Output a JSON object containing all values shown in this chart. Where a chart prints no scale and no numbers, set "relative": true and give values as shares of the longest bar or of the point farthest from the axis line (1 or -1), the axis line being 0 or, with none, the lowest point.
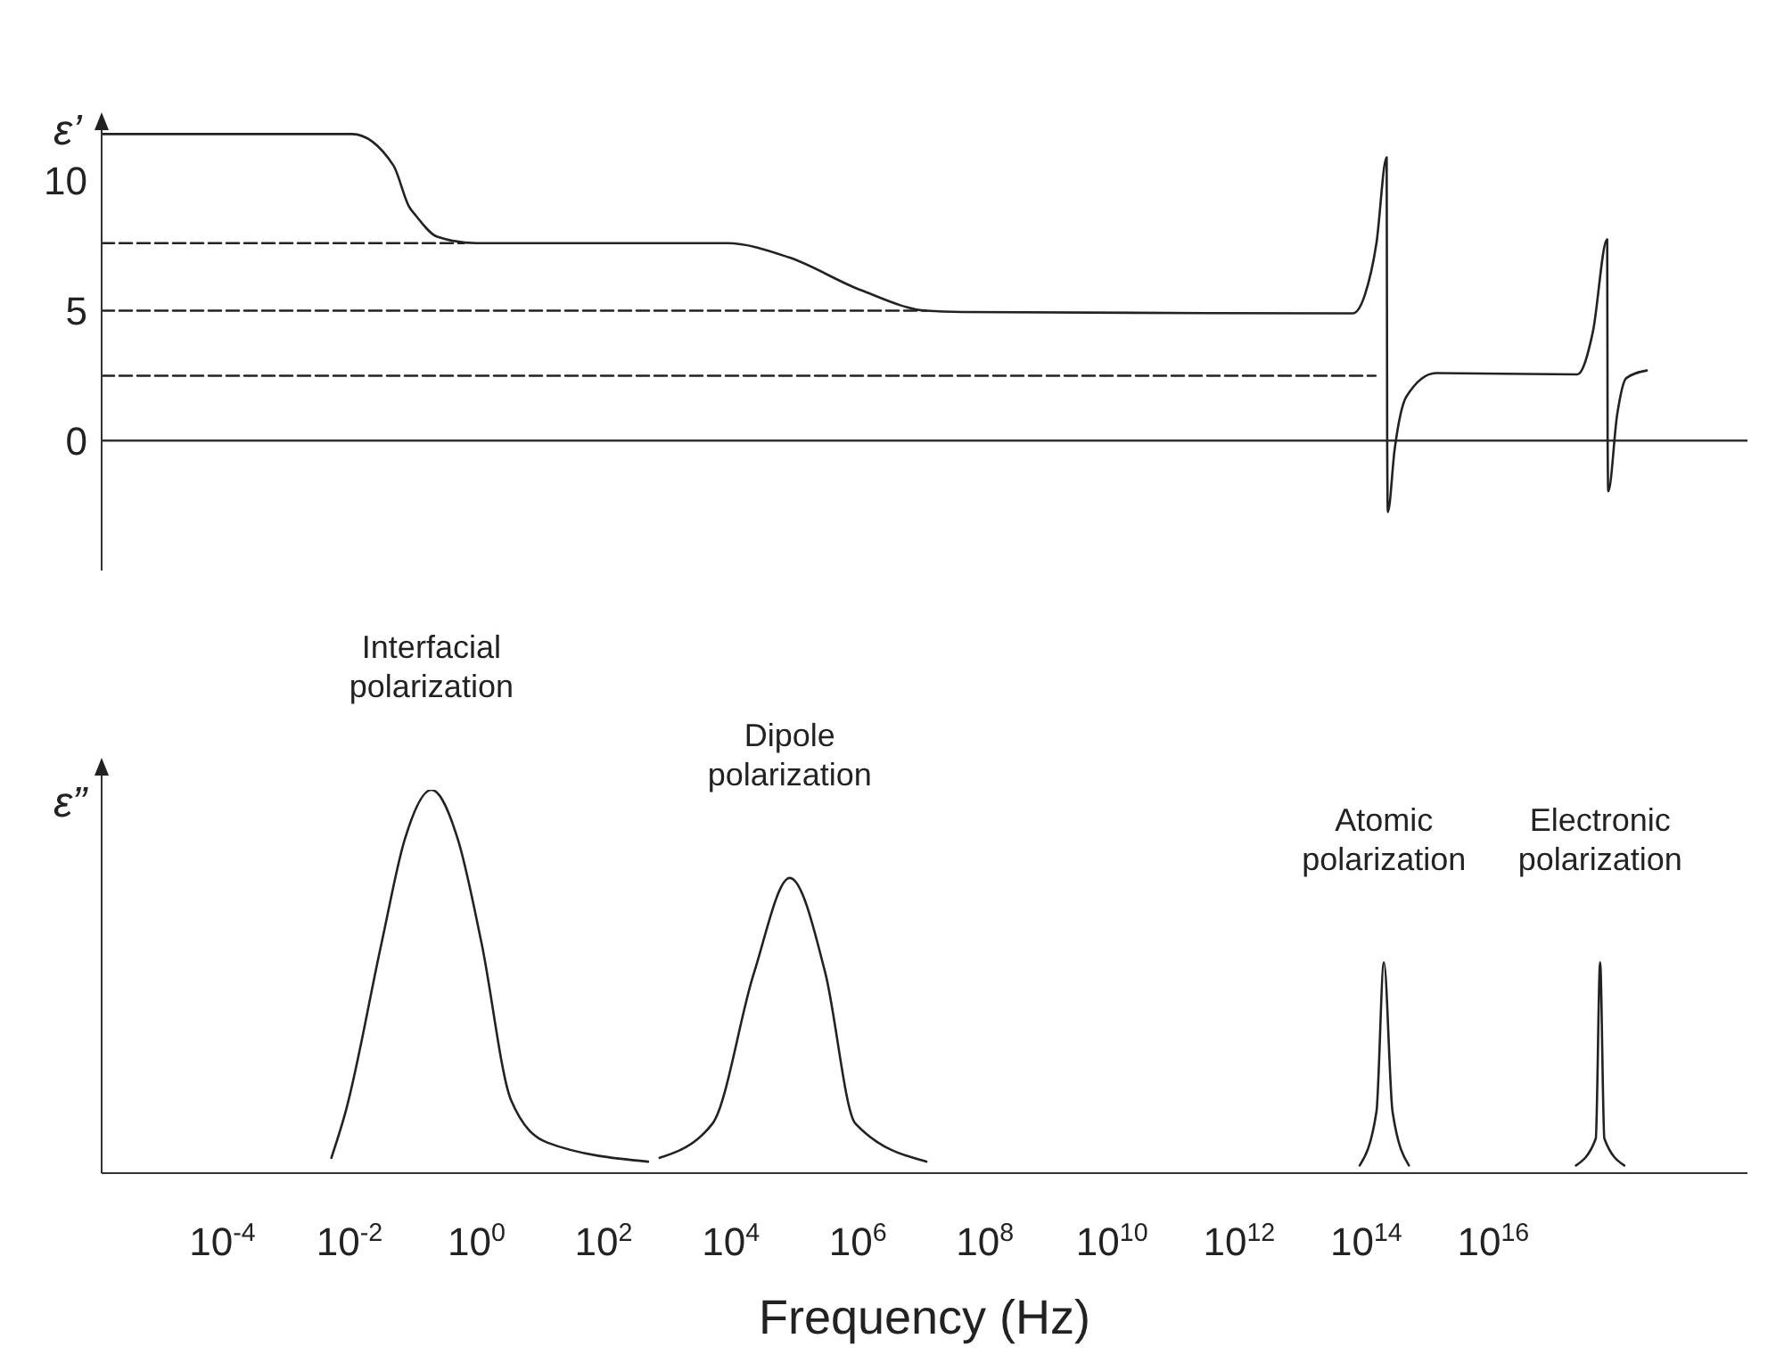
{
  "chart_data": [
    {
      "type": "line",
      "ylabel": "ε’",
      "log": "x",
      "xlim": [
        1.26e-06,
        1e+20
      ],
      "ylim": [
        -5,
        12.5
      ],
      "yticks": [
        0,
        5,
        10
      ],
      "tick_labels": "y",
      "marker": "none",
      "series": [
        {
          "color": "#222222",
          "x": [
            1.26e-06,
            0.011,
            0.049,
            0.087,
            0.112,
            0.24,
            1,
            8700.0,
            83000.0,
            1100000.0,
            12000000.0,
            44000000.0,
            62000000000000.0,
            95000000000000.0,
            145000000000000.0,
            210000000000000.0,
            214000000000000.0,
            219000000000000.0,
            280000000000000.0,
            430000000000000.0,
            1260000000000000.0,
            2.1e+17,
            3.7e+17,
            6.2e+17,
            6.3e+17,
            6.45e+17,
            8.9e+17,
            1.23e+18,
            2.6e+18
          ],
          "values": [
            11.8,
            11.8,
            10.6,
            9.0,
            8.65,
            7.85,
            7.6,
            7.6,
            7.05,
            5.8,
            5.0,
            4.95,
            4.9,
            5.6,
            7.6,
            10.9,
            0.1,
            -2.75,
            -0.35,
            1.7,
            2.6,
            2.55,
            4.2,
            7.75,
            0.1,
            -1.95,
            1.0,
            2.4,
            2.7
          ]
        },
        {
          "color": "#222222",
          "line_style": "dashed",
          "x": [
            1.26e-06,
            0.63
          ],
          "values": [
            7.6,
            7.6
          ]
        },
        {
          "color": "#222222",
          "line_style": "dashed",
          "x": [
            1.26e-06,
            12000000.0
          ],
          "values": [
            5.0,
            5.0
          ]
        },
        {
          "color": "#222222",
          "line_style": "dashed",
          "x": [
            1.26e-06,
            140000000000000.0
          ],
          "values": [
            2.5,
            2.5
          ]
        }
      ]
    },
    {
      "type": "line",
      "ylabel": "ε”",
      "xlabel": "Frequency (Hz)",
      "relative": true,
      "log": "x",
      "xlim": [
        1.26e-06,
        1e+20
      ],
      "tick_labels": "x",
      "marker": "none",
      "xticks": [
        {
          "value": 0.0001,
          "label": "10$^{-4}$"
        },
        {
          "value": 0.01,
          "label": "10$^{-2}$"
        },
        {
          "value": 1,
          "label": "10$^{0}$"
        },
        {
          "value": 100,
          "label": "10$^{2}$"
        },
        {
          "value": 10000.0,
          "label": "10$^{4}$"
        },
        {
          "value": 1000000.0,
          "label": "10$^{6}$"
        },
        {
          "value": 100000000.0,
          "label": "10$^{8}$"
        },
        {
          "value": 10000000000.0,
          "label": "10$^{10}$"
        },
        {
          "value": 1000000000000.0,
          "label": "10$^{12}$"
        },
        {
          "value": 100000000000000.0,
          "label": "10$^{14}$"
        },
        {
          "value": 1e+16,
          "label": "10$^{16}$"
        }
      ],
      "annotations": [
        {
          "text": "Interfacial polarization",
          "x": 0.195,
          "y": 1
        },
        {
          "text": "Dipole polarization",
          "x": 85000.0,
          "y": 0.77
        },
        {
          "text": "Atomic polarization",
          "x": 190000000000000.0,
          "y": 0.55
        },
        {
          "text": "Electronic polarization",
          "x": 4.8e+17,
          "y": 0.55
        }
      ],
      "series": [
        {
          "color": "#222222",
          "x": [
            0.0052,
            0.0087,
            0.032,
            0.074,
            0.195,
            0.51,
            1.2,
            3.5,
            12.9,
            500
          ],
          "values": [
            0.04,
            0.16,
            0.6,
            0.87,
            1,
            0.87,
            0.6,
            0.19,
            0.08,
            0.03
          ]
        },
        {
          "color": "#222222",
          "x": [
            760,
            5200.0,
            23000.0,
            85000.0,
            310000.0,
            910000.0,
            12000000.0
          ],
          "values": [
            0.04,
            0.13,
            0.52,
            0.77,
            0.52,
            0.13,
            0.03
          ]
        },
        {
          "color": "#222222",
          "x": [
            79000000000000.0,
            145000000000000.0,
            190000000000000.0,
            260000000000000.0,
            470000000000000.0
          ],
          "values": [
            0.02,
            0.16,
            0.55,
            0.16,
            0.02
          ]
        },
        {
          "color": "#222222",
          "x": [
            2e+17,
            4.1e+17,
            4.8e+17,
            5.6e+17,
            1.15e+18
          ],
          "values": [
            0.02,
            0.09,
            0.55,
            0.09,
            0.02
          ]
        }
      ]
    }
  ]
}
